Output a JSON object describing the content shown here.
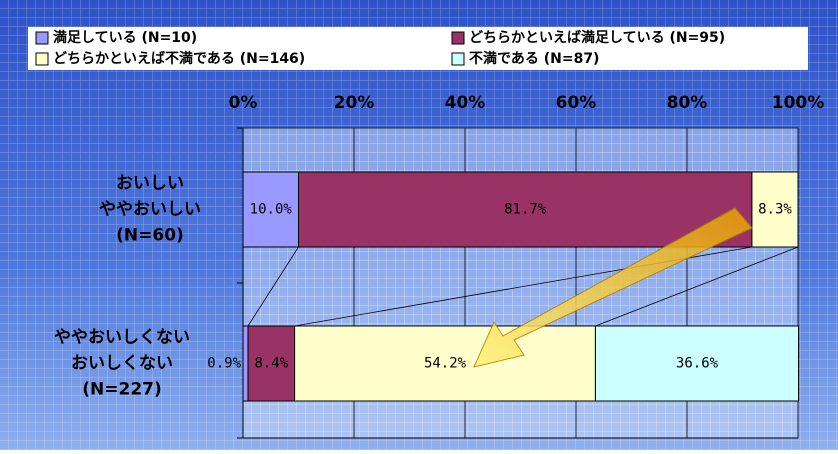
{
  "chart_data": {
    "type": "stacked_barh",
    "categories": [
      [
        "おいしい",
        "ややおいしい",
        "(N=60)"
      ],
      [
        "ややおいしくない",
        "おいしくない",
        "(N=227)"
      ]
    ],
    "series": [
      {
        "name": "満足している (N=10)",
        "color": "#9999ff",
        "values": [
          10.0,
          0.9
        ],
        "value_labels": [
          "10.0%",
          "0.9%"
        ]
      },
      {
        "name": "どちらかといえば満足している (N=95)",
        "color": "#993366",
        "values": [
          81.7,
          8.4
        ],
        "value_labels": [
          "81.7%",
          "8.4%"
        ]
      },
      {
        "name": "どちらかといえば不満である (N=146)",
        "color": "#ffffcc",
        "values": [
          8.3,
          54.2
        ],
        "value_labels": [
          "8.3%",
          "54.2%"
        ]
      },
      {
        "name": "不満である (N=87)",
        "color": "#ccffff",
        "values": [
          0,
          36.6
        ],
        "value_labels": [
          null,
          "36.6%"
        ]
      }
    ],
    "xlim": [
      0,
      100
    ],
    "xticks": [
      {
        "value": 0,
        "label": "0%"
      },
      {
        "value": 20,
        "label": "20%"
      },
      {
        "value": 40,
        "label": "40%"
      },
      {
        "value": 60,
        "label": "60%"
      },
      {
        "value": 80,
        "label": "80%"
      },
      {
        "value": 100,
        "label": "100%"
      }
    ],
    "grid": true
  }
}
